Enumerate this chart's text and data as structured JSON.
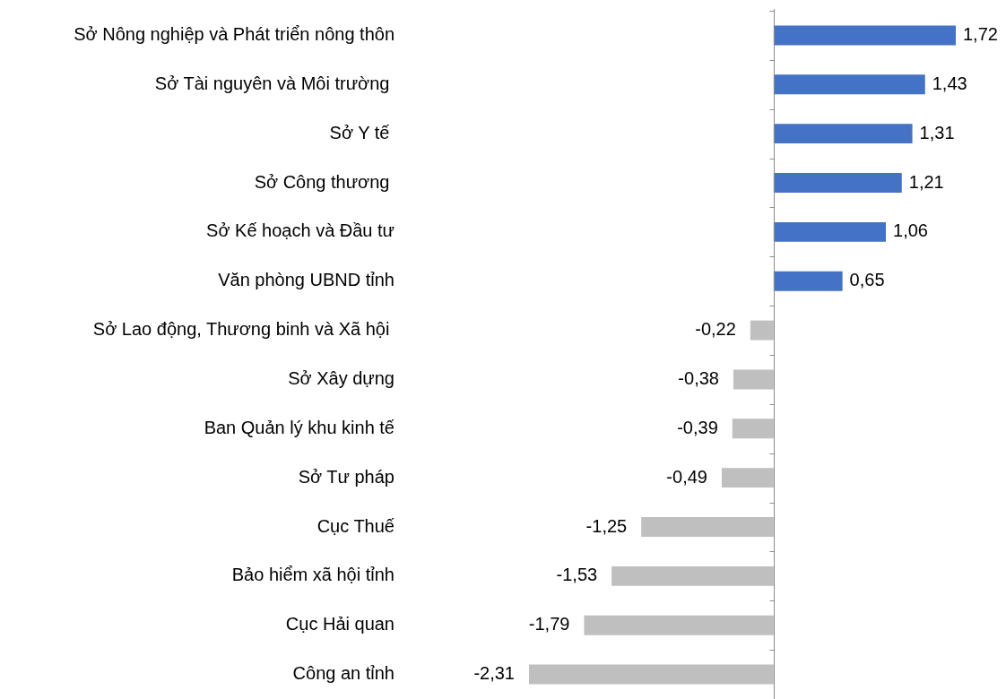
{
  "chart_data": {
    "type": "bar",
    "orientation": "horizontal",
    "legend": false,
    "value_labels": [
      "1,72",
      "1,43",
      "1,31",
      "1,21",
      "1,06",
      "0,65",
      "-0,22",
      "-0,38",
      "-0,39",
      "-0,49",
      "-1,25",
      "-1,53",
      "-1,79",
      "-2,31"
    ],
    "categories": [
      "Sở Nông nghiệp và Phát triển nông thôn",
      "Sở Tài nguyên và Môi trường ",
      "Sở Y tế ",
      "Sở Công thương ",
      "Sở Kế hoạch và Đầu tư",
      "Văn phòng UBND tỉnh",
      "Sở Lao động, Thương binh và Xã hội ",
      "Sở Xây dựng",
      "Ban Quản lý khu kinh tế",
      "Sở Tư pháp",
      "Cục Thuế",
      "Bảo hiểm xã hội tỉnh",
      "Cục Hải quan",
      "Công an tỉnh"
    ],
    "values": [
      1.72,
      1.43,
      1.31,
      1.21,
      1.06,
      0.65,
      -0.22,
      -0.38,
      -0.39,
      -0.49,
      -1.25,
      -1.53,
      -1.79,
      -2.31
    ],
    "colors": [
      "#4472c4",
      "#4472c4",
      "#4472c4",
      "#4472c4",
      "#4472c4",
      "#4472c4",
      "#bfbfbf",
      "#bfbfbf",
      "#bfbfbf",
      "#bfbfbf",
      "#bfbfbf",
      "#bfbfbf",
      "#bfbfbf",
      "#bfbfbf"
    ]
  }
}
